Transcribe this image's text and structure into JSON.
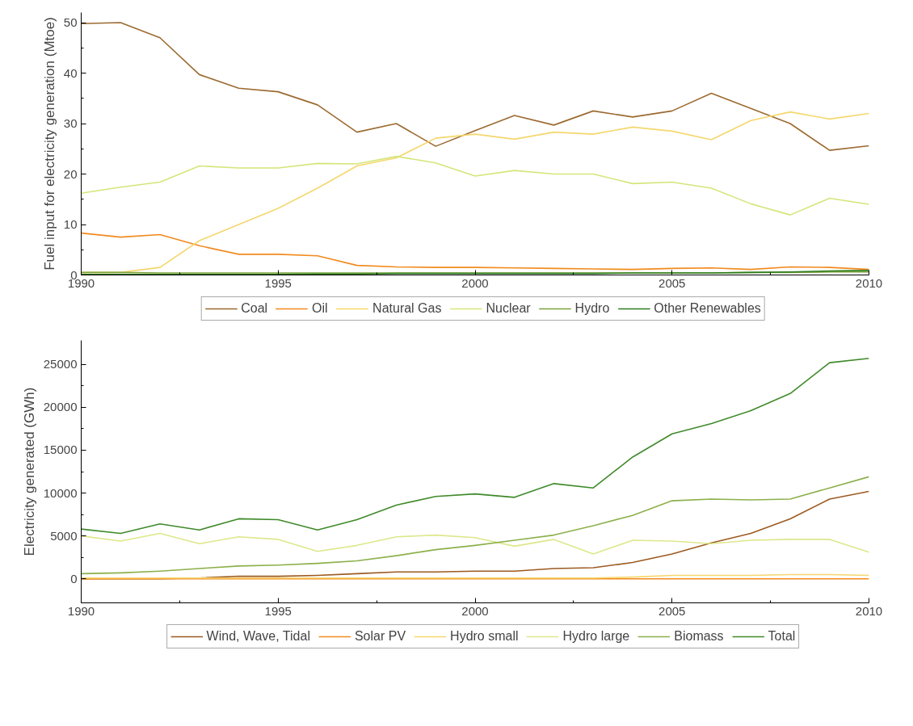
{
  "chart_data": [
    {
      "type": "line",
      "ylabel": "Fuel input for electricity generation (Mtoe)",
      "x": [
        1990,
        1991,
        1992,
        1993,
        1994,
        1995,
        1996,
        1997,
        1998,
        1999,
        2000,
        2001,
        2002,
        2003,
        2004,
        2005,
        2006,
        2007,
        2008,
        2009,
        2010
      ],
      "xlim": [
        1990,
        2010
      ],
      "xticks": [
        1990,
        1995,
        2000,
        2005,
        2010
      ],
      "ylim": [
        0,
        52
      ],
      "yticks": [
        0,
        10,
        20,
        30,
        40,
        50
      ],
      "grid": false,
      "legend": "bottom",
      "marker": "none",
      "line_style": "solid",
      "series": [
        {
          "name": "Coal",
          "color": "#9c6a30",
          "values": [
            49.8,
            50,
            47,
            39.7,
            37,
            36.3,
            33.7,
            28.3,
            30,
            25.5,
            28.6,
            31.6,
            29.7,
            32.5,
            31.3,
            32.5,
            36,
            33,
            30,
            24.7,
            25.6
          ]
        },
        {
          "name": "Oil",
          "color": "#f28a1e",
          "values": [
            8.3,
            7.5,
            8,
            5.8,
            4.1,
            4.1,
            3.8,
            1.9,
            1.6,
            1.5,
            1.5,
            1.4,
            1.3,
            1.2,
            1.1,
            1.3,
            1.4,
            1.1,
            1.6,
            1.5,
            1.1
          ]
        },
        {
          "name": "Natural Gas",
          "color": "#f5d76e",
          "values": [
            0.5,
            0.5,
            1.5,
            6.8,
            10,
            13.2,
            17.2,
            21.6,
            23.2,
            27.1,
            27.9,
            26.9,
            28.3,
            27.9,
            29.3,
            28.5,
            26.8,
            30.6,
            32.3,
            30.9,
            32
          ]
        },
        {
          "name": "Nuclear",
          "color": "#d4e67a",
          "values": [
            16.2,
            17.4,
            18.4,
            21.6,
            21.2,
            21.2,
            22.1,
            22,
            23.5,
            22.2,
            19.6,
            20.7,
            20,
            20,
            18.1,
            18.4,
            17.2,
            14.1,
            11.9,
            15.2,
            14
          ]
        },
        {
          "name": "Hydro",
          "color": "#7aa23a",
          "values": [
            0.5,
            0.5,
            0.4,
            0.4,
            0.4,
            0.4,
            0.4,
            0.4,
            0.4,
            0.4,
            0.4,
            0.4,
            0.4,
            0.4,
            0.4,
            0.4,
            0.4,
            0.5,
            0.5,
            0.6,
            0.6
          ]
        },
        {
          "name": "Other Renewables",
          "color": "#2e7d1e",
          "values": [
            0.1,
            0.1,
            0.1,
            0.1,
            0.1,
            0.1,
            0.2,
            0.2,
            0.3,
            0.3,
            0.3,
            0.3,
            0.3,
            0.3,
            0.4,
            0.4,
            0.4,
            0.5,
            0.6,
            0.8,
            0.9
          ]
        }
      ]
    },
    {
      "type": "line",
      "ylabel": "Electricity generated (GWh)",
      "x": [
        1990,
        1991,
        1992,
        1993,
        1994,
        1995,
        1996,
        1997,
        1998,
        1999,
        2000,
        2001,
        2002,
        2003,
        2004,
        2005,
        2006,
        2007,
        2008,
        2009,
        2010
      ],
      "xlim": [
        1990,
        2010
      ],
      "xticks": [
        1990,
        1995,
        2000,
        2005,
        2010
      ],
      "ylim": [
        -2800,
        27800
      ],
      "yticks": [
        0,
        5000,
        10000,
        15000,
        20000,
        25000
      ],
      "grid": false,
      "legend": "bottom",
      "marker": "none",
      "line_style": "solid",
      "series": [
        {
          "name": "Wind, Wave, Tidal",
          "color": "#9c5a20",
          "values": [
            0,
            0,
            0,
            100,
            300,
            300,
            400,
            600,
            800,
            800,
            900,
            900,
            1200,
            1300,
            1900,
            2900,
            4200,
            5300,
            7000,
            9300,
            10200
          ]
        },
        {
          "name": "Solar PV",
          "color": "#f28a1e",
          "values": [
            0,
            0,
            0,
            0,
            0,
            0,
            0,
            0,
            0,
            0,
            0,
            0,
            0,
            0,
            0,
            0,
            0,
            0,
            0,
            0,
            0
          ]
        },
        {
          "name": "Hydro small",
          "color": "#f5d76e",
          "values": [
            100,
            100,
            100,
            100,
            100,
            100,
            100,
            100,
            100,
            100,
            100,
            100,
            100,
            100,
            200,
            400,
            400,
            400,
            500,
            500,
            400
          ]
        },
        {
          "name": "Hydro large",
          "color": "#dde88a",
          "values": [
            5000,
            4400,
            5300,
            4100,
            4900,
            4600,
            3200,
            3900,
            4900,
            5100,
            4800,
            3800,
            4600,
            2900,
            4500,
            4400,
            4100,
            4500,
            4600,
            4600,
            3100
          ]
        },
        {
          "name": "Biomass",
          "color": "#8cb04a",
          "values": [
            600,
            700,
            900,
            1200,
            1500,
            1600,
            1800,
            2100,
            2700,
            3400,
            3900,
            4500,
            5100,
            6200,
            7400,
            9100,
            9300,
            9200,
            9300,
            10600,
            11900
          ]
        },
        {
          "name": "Total",
          "color": "#3f8a2a",
          "values": [
            5800,
            5300,
            6400,
            5700,
            7000,
            6900,
            5700,
            6900,
            8600,
            9600,
            9900,
            9500,
            11100,
            10600,
            14200,
            16900,
            18100,
            19600,
            21600,
            25200,
            25700
          ]
        }
      ]
    }
  ]
}
